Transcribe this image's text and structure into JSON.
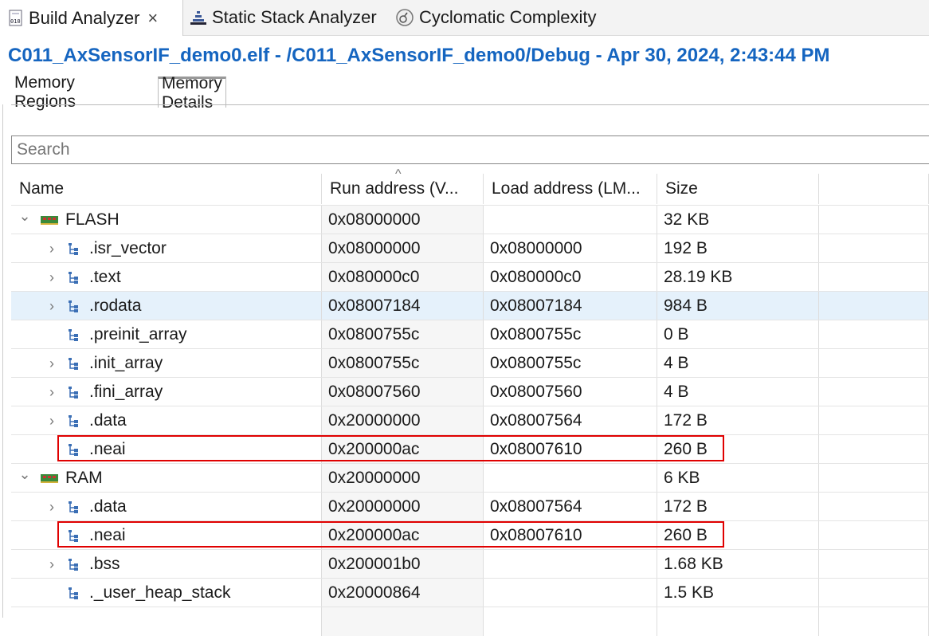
{
  "tabs": [
    {
      "label": "Build Analyzer",
      "icon": "binary-file-icon",
      "active": true,
      "closable": true
    },
    {
      "label": "Static Stack Analyzer",
      "icon": "stack-icon"
    },
    {
      "label": "Cyclomatic Complexity",
      "icon": "complexity-icon"
    }
  ],
  "title": "C011_AxSensorIF_demo0.elf - /C011_AxSensorIF_demo0/Debug - Apr 30, 2024, 2:43:44 PM",
  "subtabs": [
    {
      "label": "Memory Regions"
    },
    {
      "label": "Memory Details",
      "active": true
    }
  ],
  "search": {
    "placeholder": "Search"
  },
  "columns": [
    "Name",
    "Run address (V...",
    "Load address (LM...",
    "Size"
  ],
  "sort_column": "Run address (V...",
  "rows": [
    {
      "name": "FLASH",
      "level": 0,
      "expander": "expanded",
      "icon": "memory-chip-icon",
      "run": "0x08000000",
      "load": "",
      "size": "32 KB"
    },
    {
      "name": ".isr_vector",
      "level": 1,
      "expander": "collapsed",
      "icon": "section-tree-icon",
      "run": "0x08000000",
      "load": "0x08000000",
      "size": "192 B"
    },
    {
      "name": ".text",
      "level": 1,
      "expander": "collapsed",
      "icon": "section-tree-icon",
      "run": "0x080000c0",
      "load": "0x080000c0",
      "size": "28.19 KB"
    },
    {
      "name": ".rodata",
      "level": 1,
      "expander": "collapsed",
      "icon": "section-tree-icon",
      "run": "0x08007184",
      "load": "0x08007184",
      "size": "984 B",
      "selected": true
    },
    {
      "name": ".preinit_array",
      "level": 1,
      "expander": "none",
      "icon": "section-tree-icon",
      "run": "0x0800755c",
      "load": "0x0800755c",
      "size": "0 B"
    },
    {
      "name": ".init_array",
      "level": 1,
      "expander": "collapsed",
      "icon": "section-tree-icon",
      "run": "0x0800755c",
      "load": "0x0800755c",
      "size": "4 B"
    },
    {
      "name": ".fini_array",
      "level": 1,
      "expander": "collapsed",
      "icon": "section-tree-icon",
      "run": "0x08007560",
      "load": "0x08007560",
      "size": "4 B"
    },
    {
      "name": ".data",
      "level": 1,
      "expander": "collapsed",
      "icon": "section-tree-icon",
      "run": "0x20000000",
      "load": "0x08007564",
      "size": "172 B"
    },
    {
      "name": ".neai",
      "level": 1,
      "expander": "none",
      "icon": "section-tree-icon",
      "run": "0x200000ac",
      "load": "0x08007610",
      "size": "260 B",
      "highlighted": true
    },
    {
      "name": "RAM",
      "level": 0,
      "expander": "expanded",
      "icon": "memory-chip-icon",
      "run": "0x20000000",
      "load": "",
      "size": "6 KB"
    },
    {
      "name": ".data",
      "level": 1,
      "expander": "collapsed",
      "icon": "section-tree-icon",
      "run": "0x20000000",
      "load": "0x08007564",
      "size": "172 B"
    },
    {
      "name": ".neai",
      "level": 1,
      "expander": "none",
      "icon": "section-tree-icon",
      "run": "0x200000ac",
      "load": "0x08007610",
      "size": "260 B",
      "highlighted": true
    },
    {
      "name": ".bss",
      "level": 1,
      "expander": "collapsed",
      "icon": "section-tree-icon",
      "run": "0x200001b0",
      "load": "",
      "size": "1.68 KB"
    },
    {
      "name": "._user_heap_stack",
      "level": 1,
      "expander": "none",
      "icon": "section-tree-icon",
      "run": "0x20000864",
      "load": "",
      "size": "1.5 KB"
    }
  ],
  "colors": {
    "title": "#1565c0",
    "highlight_box": "#e00000",
    "selected_row": "#e5f1fb"
  }
}
